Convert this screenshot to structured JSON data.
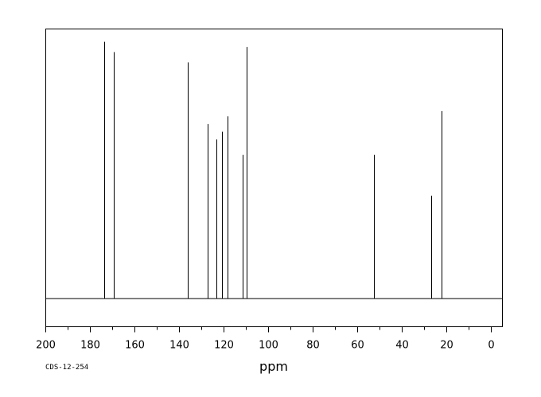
{
  "chart_data": {
    "type": "line",
    "title": "",
    "xlabel": "ppm",
    "ylabel": "",
    "xlim": [
      200,
      -5
    ],
    "ylim": [
      -0.11,
      1.05
    ],
    "x_reversed": true,
    "grid": false,
    "legend": "none",
    "ticks": [
      200,
      180,
      160,
      140,
      120,
      100,
      80,
      60,
      40,
      20,
      0
    ],
    "tick_labels": [
      "200",
      "180",
      "160",
      "140",
      "120",
      "100",
      "80",
      "60",
      "40",
      "20",
      "0"
    ],
    "peaks": [
      {
        "ppm": 173.8,
        "intensity": 1.0
      },
      {
        "ppm": 169.5,
        "intensity": 0.96
      },
      {
        "ppm": 136.2,
        "intensity": 0.92
      },
      {
        "ppm": 127.5,
        "intensity": 0.68
      },
      {
        "ppm": 123.5,
        "intensity": 0.62
      },
      {
        "ppm": 121.0,
        "intensity": 0.65
      },
      {
        "ppm": 118.3,
        "intensity": 0.71
      },
      {
        "ppm": 111.6,
        "intensity": 0.56
      },
      {
        "ppm": 109.9,
        "intensity": 0.98
      },
      {
        "ppm": 52.6,
        "intensity": 0.56
      },
      {
        "ppm": 26.8,
        "intensity": 0.4
      },
      {
        "ppm": 22.2,
        "intensity": 0.73
      }
    ]
  },
  "footer": {
    "code": "CDS-12-254"
  }
}
